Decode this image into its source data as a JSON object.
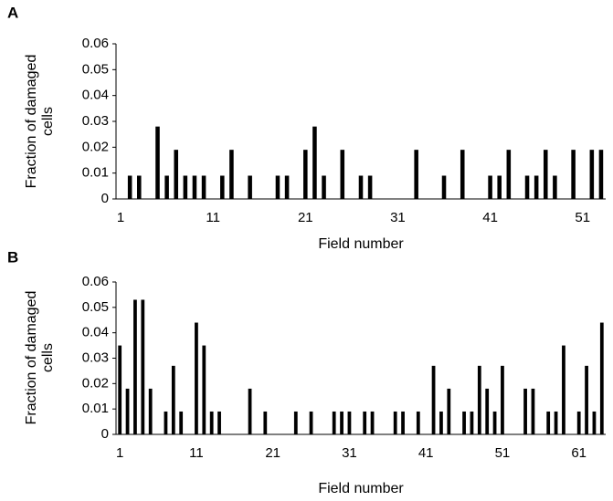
{
  "chart_data": [
    {
      "type": "bar",
      "panel_label": "A",
      "y_label": "Fraction of damaged cells",
      "x_label": "Field number",
      "color": "#000000",
      "categories": [
        "1",
        null,
        null,
        null,
        null,
        null,
        null,
        null,
        null,
        null,
        "11",
        null,
        null,
        null,
        null,
        null,
        null,
        null,
        null,
        null,
        "21",
        null,
        null,
        null,
        null,
        null,
        null,
        null,
        null,
        null,
        "31",
        null,
        null,
        null,
        null,
        null,
        null,
        null,
        null,
        null,
        "41",
        null,
        null,
        null,
        null,
        null,
        null,
        null,
        null,
        null,
        "51",
        null,
        null
      ],
      "values": [
        0,
        0.009,
        0.009,
        0,
        0.028,
        0.009,
        0.019,
        0.009,
        0.009,
        0.009,
        0,
        0.009,
        0.019,
        0,
        0.009,
        0,
        0,
        0.009,
        0.009,
        0,
        0.019,
        0.028,
        0.009,
        0,
        0.019,
        0,
        0.009,
        0.009,
        0,
        0,
        0,
        0,
        0.019,
        0,
        0,
        0.009,
        0,
        0.019,
        0,
        0,
        0.009,
        0.009,
        0.019,
        0,
        0.009,
        0.009,
        0.019,
        0.009,
        0,
        0.019,
        0,
        0.019,
        0.019
      ],
      "ylim": [
        0,
        0.06
      ],
      "yticks": [
        0,
        0.01,
        0.02,
        0.03,
        0.04,
        0.05,
        0.06
      ]
    },
    {
      "type": "bar",
      "panel_label": "B",
      "y_label": "Fraction of damaged cells",
      "x_label": "Field number",
      "color": "#000000",
      "categories": [
        "1",
        null,
        null,
        null,
        null,
        null,
        null,
        null,
        null,
        null,
        "11",
        null,
        null,
        null,
        null,
        null,
        null,
        null,
        null,
        null,
        "21",
        null,
        null,
        null,
        null,
        null,
        null,
        null,
        null,
        null,
        "31",
        null,
        null,
        null,
        null,
        null,
        null,
        null,
        null,
        null,
        "41",
        null,
        null,
        null,
        null,
        null,
        null,
        null,
        null,
        null,
        "51",
        null,
        null,
        null,
        null,
        null,
        null,
        null,
        null,
        null,
        "61",
        null,
        null,
        null
      ],
      "values": [
        0.035,
        0.018,
        0.053,
        0.053,
        0.018,
        0,
        0.009,
        0.027,
        0.009,
        0,
        0.044,
        0.035,
        0.009,
        0.009,
        0,
        0,
        0,
        0.018,
        0,
        0.009,
        0,
        0,
        0,
        0.009,
        0,
        0.009,
        0,
        0,
        0.009,
        0.009,
        0.009,
        0,
        0.009,
        0.009,
        0,
        0,
        0.009,
        0.009,
        0,
        0.009,
        0,
        0.027,
        0.009,
        0.018,
        0,
        0.009,
        0.009,
        0.027,
        0.018,
        0.009,
        0.027,
        0,
        0,
        0.018,
        0.018,
        0,
        0.009,
        0.009,
        0.035,
        0,
        0.009,
        0.027,
        0.009,
        0.044
      ],
      "ylim": [
        0,
        0.06
      ],
      "yticks": [
        0,
        0.01,
        0.02,
        0.03,
        0.04,
        0.05,
        0.06
      ]
    }
  ]
}
